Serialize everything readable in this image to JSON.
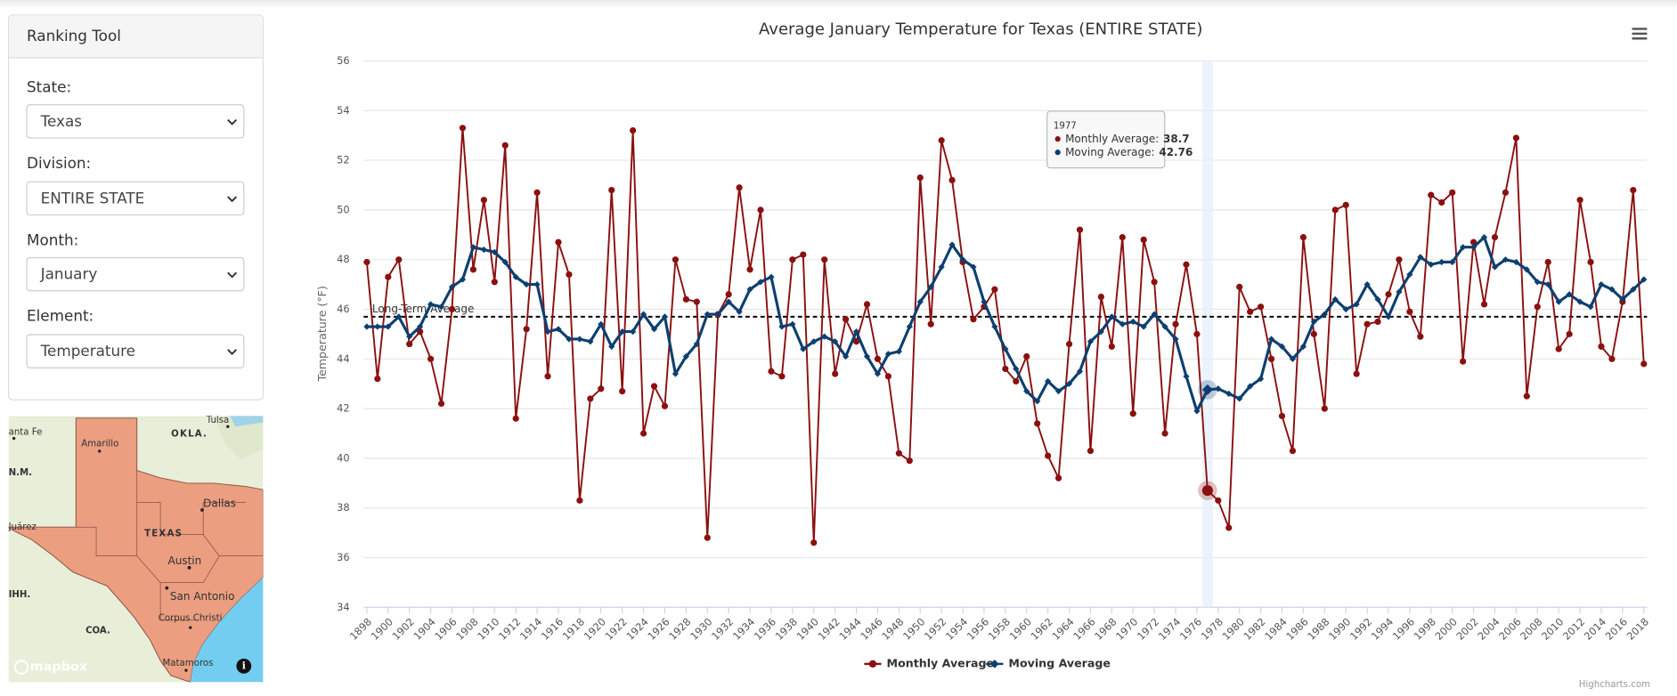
{
  "sidebar": {
    "title": "Ranking Tool",
    "fields": [
      {
        "label": "State:",
        "value": "Texas"
      },
      {
        "label": "Division:",
        "value": "ENTIRE STATE"
      },
      {
        "label": "Month:",
        "value": "January"
      },
      {
        "label": "Element:",
        "value": "Temperature"
      }
    ]
  },
  "map": {
    "labels": [
      "Tulsa",
      "anta Fe",
      "Amarillo",
      "OKLA.",
      "N.M.",
      "Dallas",
      "TEXAS",
      "Juárez",
      "Austin",
      "San Antonio",
      "IHH.",
      "COA.",
      "Corpus Christi",
      "Matamoros"
    ],
    "attribution": "mapbox"
  },
  "chart_data": {
    "type": "line",
    "title": "Average January Temperature for Texas (ENTIRE STATE)",
    "y_label": "Temperature (°F)",
    "credits": "Highcharts.com",
    "x": [
      1898,
      1899,
      1900,
      1901,
      1902,
      1903,
      1904,
      1905,
      1906,
      1907,
      1908,
      1909,
      1910,
      1911,
      1912,
      1913,
      1914,
      1915,
      1916,
      1917,
      1918,
      1919,
      1920,
      1921,
      1922,
      1923,
      1924,
      1925,
      1926,
      1927,
      1928,
      1929,
      1930,
      1931,
      1932,
      1933,
      1934,
      1935,
      1936,
      1937,
      1938,
      1939,
      1940,
      1941,
      1942,
      1943,
      1944,
      1945,
      1946,
      1947,
      1948,
      1949,
      1950,
      1951,
      1952,
      1953,
      1954,
      1955,
      1956,
      1957,
      1958,
      1959,
      1960,
      1961,
      1962,
      1963,
      1964,
      1965,
      1966,
      1967,
      1968,
      1969,
      1970,
      1971,
      1972,
      1973,
      1974,
      1975,
      1976,
      1977,
      1978,
      1979,
      1980,
      1981,
      1982,
      1983,
      1984,
      1985,
      1986,
      1987,
      1988,
      1989,
      1990,
      1991,
      1992,
      1993,
      1994,
      1995,
      1996,
      1997,
      1998,
      1999,
      2000,
      2001,
      2002,
      2003,
      2004,
      2005,
      2006,
      2007,
      2008,
      2009,
      2010,
      2011,
      2012,
      2013,
      2014,
      2015,
      2016,
      2017,
      2018
    ],
    "xlim": [
      1898,
      2018
    ],
    "xticks": [
      1898,
      1900,
      1902,
      1904,
      1906,
      1908,
      1910,
      1912,
      1914,
      1916,
      1918,
      1920,
      1922,
      1924,
      1926,
      1928,
      1930,
      1932,
      1934,
      1936,
      1938,
      1940,
      1942,
      1944,
      1946,
      1948,
      1950,
      1952,
      1954,
      1956,
      1958,
      1960,
      1962,
      1964,
      1966,
      1968,
      1970,
      1972,
      1974,
      1976,
      1978,
      1980,
      1982,
      1984,
      1986,
      1988,
      1990,
      1992,
      1994,
      1996,
      1998,
      2000,
      2002,
      2004,
      2006,
      2008,
      2010,
      2012,
      2014,
      2016,
      2018
    ],
    "ylim": [
      34,
      56
    ],
    "yticks": [
      34,
      36,
      38,
      40,
      42,
      44,
      46,
      48,
      50,
      52,
      54,
      56
    ],
    "grid": true,
    "legend": "bottom",
    "series": [
      {
        "name": "Monthly Average",
        "color": "#8b1010",
        "marker": "circle",
        "values": [
          47.9,
          43.2,
          47.3,
          48.0,
          44.6,
          45.1,
          44.0,
          42.2,
          46.0,
          53.3,
          47.6,
          50.4,
          47.1,
          52.6,
          41.6,
          45.2,
          50.7,
          43.3,
          48.7,
          47.4,
          38.3,
          42.4,
          42.8,
          50.8,
          42.7,
          53.2,
          41.0,
          42.9,
          42.1,
          48.0,
          46.4,
          46.3,
          36.8,
          45.8,
          46.6,
          50.9,
          47.6,
          50.0,
          43.5,
          43.3,
          48.0,
          48.2,
          36.6,
          48.0,
          43.4,
          45.6,
          44.7,
          46.2,
          44.0,
          43.3,
          40.2,
          39.9,
          51.3,
          45.4,
          52.8,
          51.2,
          47.9,
          45.6,
          46.1,
          46.8,
          43.6,
          43.1,
          44.1,
          41.4,
          40.1,
          39.2,
          44.6,
          49.2,
          40.3,
          46.5,
          44.5,
          48.9,
          41.8,
          48.8,
          47.1,
          41.0,
          45.4,
          47.8,
          45.0,
          38.7,
          38.3,
          37.2,
          46.9,
          45.9,
          46.1,
          44.0,
          41.7,
          40.3,
          48.9,
          45.0,
          42.0,
          50.0,
          50.2,
          43.4,
          45.4,
          45.5,
          46.6,
          48.0,
          45.9,
          44.9,
          50.6,
          50.3,
          50.7,
          43.9,
          48.7,
          46.2,
          48.9,
          50.7,
          52.9,
          42.5,
          46.1,
          47.9,
          44.4,
          45.0,
          50.4,
          47.9,
          44.5,
          44.0,
          46.3,
          50.8,
          43.8
        ]
      },
      {
        "name": "Moving Average",
        "color": "#0d3f70",
        "marker": "diamond",
        "values": [
          45.3,
          45.3,
          45.3,
          45.7,
          44.9,
          45.3,
          46.2,
          46.1,
          46.9,
          47.2,
          48.5,
          48.4,
          48.3,
          47.9,
          47.3,
          47.0,
          47.0,
          45.1,
          45.2,
          44.8,
          44.8,
          44.7,
          45.4,
          44.5,
          45.1,
          45.1,
          45.8,
          45.2,
          45.7,
          43.4,
          44.1,
          44.6,
          45.8,
          45.8,
          46.3,
          45.9,
          46.8,
          47.1,
          47.3,
          45.3,
          45.4,
          44.4,
          44.7,
          44.9,
          44.7,
          44.1,
          45.1,
          44.1,
          43.4,
          44.2,
          44.3,
          45.3,
          46.3,
          46.9,
          47.7,
          48.6,
          48.0,
          47.7,
          46.3,
          45.3,
          44.4,
          43.6,
          42.7,
          42.3,
          43.1,
          42.7,
          43.0,
          43.5,
          44.7,
          45.1,
          45.7,
          45.4,
          45.5,
          45.3,
          45.8,
          45.3,
          44.8,
          43.3,
          41.9,
          42.76,
          42.8,
          42.6,
          42.4,
          42.9,
          43.2,
          44.8,
          44.5,
          44.0,
          44.5,
          45.5,
          45.8,
          46.4,
          46.0,
          46.2,
          47.0,
          46.4,
          45.7,
          46.7,
          47.4,
          48.1,
          47.8,
          47.9,
          47.9,
          48.5,
          48.5,
          48.9,
          47.7,
          48.0,
          47.9,
          47.6,
          47.1,
          47.0,
          46.3,
          46.6,
          46.3,
          46.1,
          47.0,
          46.8,
          46.4,
          46.8,
          47.2
        ]
      }
    ],
    "long_term_average": {
      "value": 45.7,
      "label": "Long-Term Average"
    },
    "tooltip": {
      "index": 79,
      "title": "1977",
      "rows": [
        {
          "label": "Monthly Average:",
          "value": "38.7"
        },
        {
          "label": "Moving Average:",
          "value": "42.76"
        }
      ]
    }
  }
}
